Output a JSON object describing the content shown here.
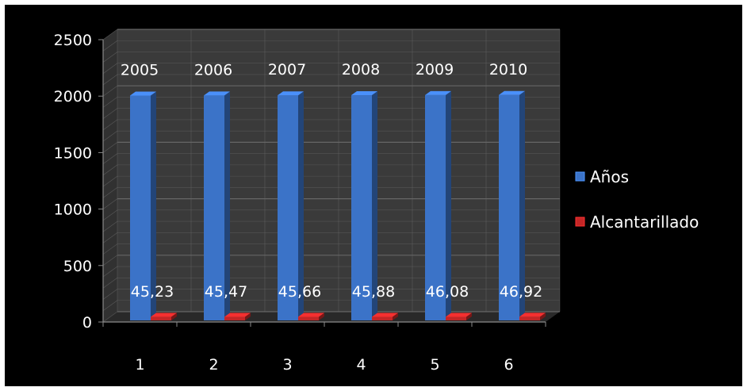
{
  "chart_data": {
    "type": "bar",
    "subtype": "3d-clustered-column",
    "categories": [
      "1",
      "2",
      "3",
      "4",
      "5",
      "6"
    ],
    "series": [
      {
        "name": "Años",
        "values": [
          2005,
          2006,
          2007,
          2008,
          2009,
          2010
        ],
        "labels": [
          "2005",
          "2006",
          "2007",
          "2008",
          "2009",
          "2010"
        ],
        "color": "#3B73C8"
      },
      {
        "name": "Alcantarillado",
        "values": [
          45.23,
          45.47,
          45.66,
          45.88,
          46.08,
          46.92
        ],
        "labels": [
          "45,23",
          "45,47",
          "45,66",
          "45,88",
          "46,08",
          "46,92"
        ],
        "color": "#C42626"
      }
    ],
    "ylim": [
      0,
      2500
    ],
    "yticks": [
      "0",
      "500",
      "1000",
      "1500",
      "2000",
      "2500"
    ],
    "ytick_values": [
      0,
      500,
      1000,
      1500,
      2000,
      2500
    ],
    "grid": true,
    "legend": "right",
    "background": "#000000",
    "wall_color": "#3A3A3A",
    "grid_color": "#6B6B6B",
    "text_color": "#FFFFFF"
  }
}
